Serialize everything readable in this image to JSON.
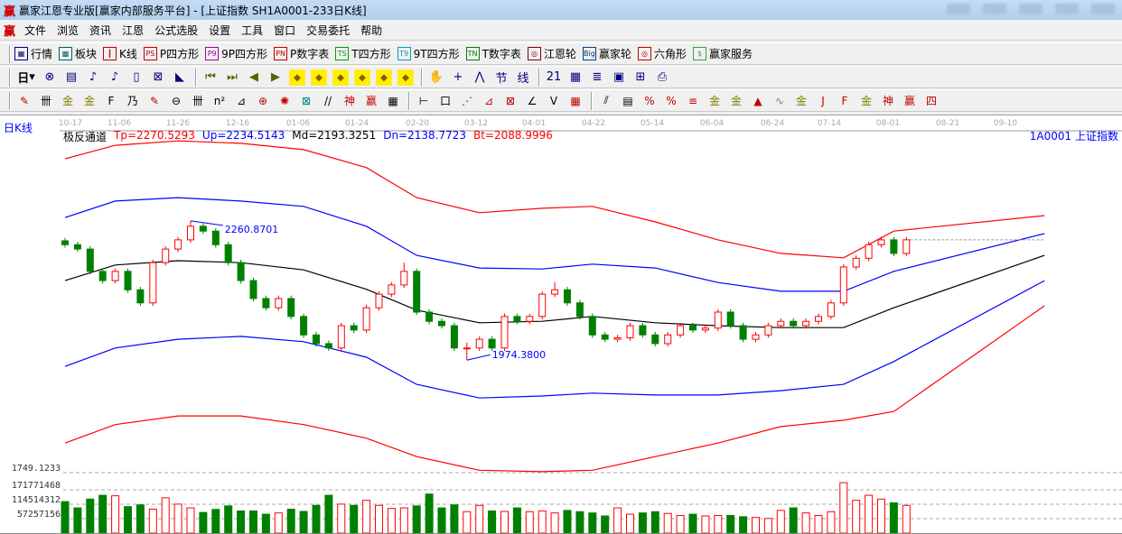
{
  "window": {
    "logo": "赢",
    "title": "赢家江恩专业版[赢家内部服务平台] - [上证指数  SH1A0001-233日K线]"
  },
  "menu": [
    "文件",
    "浏览",
    "资讯",
    "江恩",
    "公式选股",
    "设置",
    "工具",
    "窗口",
    "交易委托",
    "帮助"
  ],
  "toolbar1": [
    {
      "icon": "▦",
      "label": "行情",
      "color": "#000080"
    },
    {
      "icon": "▩",
      "label": "板块",
      "color": "#006060"
    },
    {
      "icon": "┃",
      "label": "K线",
      "color": "#c00000"
    },
    {
      "icon": "PS",
      "label": "P四方形",
      "color": "#c00000"
    },
    {
      "icon": "P9",
      "label": "9P四方形",
      "color": "#a000a0"
    },
    {
      "icon": "PN",
      "label": "P数字表",
      "color": "#c00000"
    },
    {
      "icon": "TS",
      "label": "T四方形",
      "color": "#00a000"
    },
    {
      "icon": "T9",
      "label": "9T四方形",
      "color": "#00a0c0"
    },
    {
      "icon": "TN",
      "label": "T数字表",
      "color": "#008000"
    },
    {
      "icon": "◎",
      "label": "江恩轮",
      "color": "#800000"
    },
    {
      "icon": "Big",
      "label": "赢家轮",
      "color": "#004080"
    },
    {
      "icon": "◎",
      "label": "六角形",
      "color": "#c00000"
    },
    {
      "icon": "$",
      "label": "赢家服务",
      "color": "#40a040"
    }
  ],
  "toolbar2": {
    "period": "日",
    "icons": [
      "stock-select-icon",
      "notes-icon",
      "wave3-icon",
      "wave9-icon",
      "candle-type-icon",
      "pattern-icon",
      "flag-icon",
      "first-icon",
      "last-icon",
      "prev-icon",
      "next-icon",
      "arrow-left-diamond-icon",
      "arrow-right-diamond-icon",
      "arrow-h-diamond-icon",
      "arrow-in-diamond-icon",
      "arrow-out-diamond-icon",
      "arrow-v-diamond-icon",
      "hand-icon",
      "crosshair-icon",
      "line-tool-icon",
      "node-icon",
      "green-line-icon",
      "calendar-icon",
      "calculator-icon",
      "notebook-icon",
      "save-icon",
      "network-icon",
      "print-icon"
    ],
    "glyphs": [
      "⊗",
      "▤",
      "♪",
      "♪",
      "▯",
      "⊠",
      "◣",
      "⏮",
      "⏭",
      "◀",
      "▶",
      "◆",
      "◆",
      "◆",
      "◆",
      "◆",
      "◆",
      "✋",
      "+",
      "⋀",
      "节",
      "线",
      "21",
      "▦",
      "≣",
      "▣",
      "⊞",
      "⎙"
    ]
  },
  "toolbar3": {
    "glyphs": [
      "✎",
      "卌",
      "金",
      "金",
      "F",
      "乃",
      "✎",
      "⊖",
      "卌",
      "n²",
      "⊿",
      "⊕",
      "✺",
      "⊠",
      "//",
      "神",
      "赢",
      "▦",
      "⊢",
      "口",
      "⋰",
      "⊿",
      "⊠",
      "∠",
      "V",
      "▦",
      "⫽",
      "▤",
      "%",
      "%",
      "≡",
      "金",
      "金",
      "▲",
      "∿",
      "金",
      "J",
      "F",
      "金",
      "神",
      "赢",
      "四"
    ],
    "colors": [
      "#c00000",
      "#000",
      "#808000",
      "#808000",
      "#000",
      "#000",
      "#c00000",
      "#000",
      "#000",
      "#000",
      "#000",
      "#c00000",
      "#c00000",
      "#008080",
      "#000",
      "#c00000",
      "#c00000",
      "#000",
      "#000",
      "#000",
      "#c00000",
      "#c00000",
      "#c00000",
      "#000",
      "#000",
      "#c00000",
      "#000",
      "#000",
      "#c00000",
      "#c00000",
      "#c00000",
      "#808000",
      "#808000",
      "#c00000",
      "#808080",
      "#808000",
      "#c00000",
      "#c00000",
      "#808000",
      "#c00000",
      "#c00000",
      "#c00000"
    ]
  },
  "chart": {
    "period_label": "日K线",
    "indicator_name": "极反通道",
    "indicators": [
      {
        "text": "Tp=2270.5293",
        "color": "#ff0000"
      },
      {
        "text": "Up=2234.5143",
        "color": "#0000ff"
      },
      {
        "text": "Md=2193.3251",
        "color": "#000000"
      },
      {
        "text": "Dn=2138.7723",
        "color": "#0000ff"
      },
      {
        "text": "Bt=2088.9996",
        "color": "#ff0000"
      }
    ],
    "symbol": "1A0001  上证指数",
    "dates": [
      "10-17",
      "11-06",
      "11-26",
      "12-16",
      "01-06",
      "01-24",
      "02-20",
      "03-12",
      "04-01",
      "04-22",
      "05-14",
      "06-04",
      "06-24",
      "07-14",
      "08-01",
      "08-21",
      "09-10"
    ],
    "high_label": "2260.8701",
    "low_label": "1974.3800",
    "volume_axis": [
      "1749.1233",
      "171771468",
      "114514312",
      "57257156"
    ],
    "colors": {
      "up": "#ff0000",
      "down": "#008000",
      "band_outer": "#ff0000",
      "band_inner": "#0000ff",
      "band_mid": "#000000"
    }
  },
  "chart_data": {
    "type": "candlestick",
    "candles": [
      [
        2220,
        2226,
        2206,
        2212
      ],
      [
        2212,
        2218,
        2197,
        2203
      ],
      [
        2203,
        2209,
        2151,
        2157
      ],
      [
        2157,
        2163,
        2132,
        2138
      ],
      [
        2138,
        2163,
        2132,
        2157
      ],
      [
        2157,
        2163,
        2113,
        2119
      ],
      [
        2119,
        2125,
        2086,
        2092
      ],
      [
        2092,
        2181,
        2086,
        2175
      ],
      [
        2175,
        2209,
        2169,
        2203
      ],
      [
        2203,
        2228,
        2197,
        2222
      ],
      [
        2222,
        2261,
        2216,
        2250
      ],
      [
        2250,
        2256,
        2234,
        2240
      ],
      [
        2240,
        2246,
        2206,
        2212
      ],
      [
        2212,
        2218,
        2169,
        2175
      ],
      [
        2175,
        2181,
        2132,
        2138
      ],
      [
        2138,
        2144,
        2095,
        2101
      ],
      [
        2101,
        2107,
        2076,
        2082
      ],
      [
        2082,
        2107,
        2076,
        2101
      ],
      [
        2101,
        2107,
        2058,
        2064
      ],
      [
        2064,
        2070,
        2020,
        2026
      ],
      [
        2026,
        2032,
        2002,
        2008
      ],
      [
        2008,
        2014,
        1993,
        1999
      ],
      [
        1999,
        2051,
        1993,
        2045
      ],
      [
        2045,
        2051,
        2030,
        2036
      ],
      [
        2036,
        2088,
        2030,
        2082
      ],
      [
        2082,
        2116,
        2076,
        2110
      ],
      [
        2110,
        2135,
        2104,
        2129
      ],
      [
        2129,
        2175,
        2123,
        2157
      ],
      [
        2157,
        2163,
        2067,
        2073
      ],
      [
        2073,
        2079,
        2048,
        2054
      ],
      [
        2054,
        2060,
        2039,
        2045
      ],
      [
        2045,
        2051,
        1993,
        1999
      ],
      [
        1999,
        2010,
        1974,
        1999
      ],
      [
        1999,
        2023,
        1993,
        2017
      ],
      [
        2017,
        2023,
        1993,
        1999
      ],
      [
        1999,
        2070,
        1993,
        2064
      ],
      [
        2064,
        2070,
        2048,
        2054
      ],
      [
        2054,
        2070,
        2048,
        2064
      ],
      [
        2064,
        2116,
        2058,
        2110
      ],
      [
        2110,
        2135,
        2104,
        2119
      ],
      [
        2119,
        2125,
        2086,
        2092
      ],
      [
        2092,
        2098,
        2058,
        2064
      ],
      [
        2064,
        2070,
        2020,
        2026
      ],
      [
        2026,
        2032,
        2011,
        2017
      ],
      [
        2017,
        2026,
        2011,
        2020
      ],
      [
        2020,
        2051,
        2014,
        2045
      ],
      [
        2045,
        2051,
        2020,
        2026
      ],
      [
        2026,
        2032,
        2002,
        2008
      ],
      [
        2008,
        2032,
        2002,
        2026
      ],
      [
        2026,
        2051,
        2020,
        2045
      ],
      [
        2045,
        2051,
        2030,
        2036
      ],
      [
        2036,
        2046,
        2030,
        2040
      ],
      [
        2040,
        2079,
        2034,
        2073
      ],
      [
        2073,
        2079,
        2039,
        2045
      ],
      [
        2045,
        2051,
        2011,
        2017
      ],
      [
        2017,
        2032,
        2011,
        2026
      ],
      [
        2026,
        2051,
        2020,
        2045
      ],
      [
        2045,
        2060,
        2039,
        2054
      ],
      [
        2054,
        2060,
        2039,
        2045
      ],
      [
        2045,
        2060,
        2039,
        2054
      ],
      [
        2054,
        2070,
        2048,
        2064
      ],
      [
        2064,
        2098,
        2058,
        2092
      ],
      [
        2092,
        2172,
        2086,
        2166
      ],
      [
        2166,
        2190,
        2160,
        2184
      ],
      [
        2184,
        2218,
        2178,
        2212
      ],
      [
        2212,
        2228,
        2206,
        2222
      ],
      [
        2222,
        2228,
        2188,
        2194
      ],
      [
        2194,
        2228,
        2188,
        2222
      ]
    ],
    "volume": [
      125000000,
      100000000,
      135000000,
      150000000,
      148000000,
      105000000,
      112000000,
      95000000,
      140000000,
      115000000,
      100000000,
      82000000,
      94000000,
      108000000,
      88000000,
      88000000,
      75000000,
      80000000,
      95000000,
      86000000,
      110000000,
      150000000,
      115000000,
      110000000,
      130000000,
      110000000,
      98000000,
      100000000,
      108000000,
      155000000,
      100000000,
      112000000,
      85000000,
      110000000,
      88000000,
      86000000,
      100000000,
      85000000,
      88000000,
      80000000,
      90000000,
      85000000,
      80000000,
      68000000,
      100000000,
      75000000,
      80000000,
      85000000,
      78000000,
      70000000,
      75000000,
      68000000,
      70000000,
      70000000,
      65000000,
      62000000,
      58000000,
      90000000,
      100000000,
      80000000,
      70000000,
      85000000,
      200000000,
      130000000,
      150000000,
      135000000,
      120000000,
      110000000
    ],
    "band_index": [
      0,
      4,
      9,
      14,
      19,
      24,
      28,
      33,
      38,
      42,
      47,
      52,
      57,
      62,
      66,
      78
    ],
    "bands": [
      {
        "name": "Tp",
        "values": [
          2389,
          2417,
          2426,
          2421,
          2408,
          2371,
          2309,
          2278,
          2287,
          2291,
          2259,
          2222,
          2194,
          2185,
          2240,
          2272
        ]
      },
      {
        "name": "Up",
        "values": [
          2268,
          2302,
          2309,
          2302,
          2291,
          2250,
          2190,
          2164,
          2162,
          2172,
          2164,
          2134,
          2116,
          2116,
          2157,
          2235
        ]
      },
      {
        "name": "Md",
        "values": [
          2138,
          2170,
          2179,
          2175,
          2160,
          2120,
          2077,
          2051,
          2054,
          2064,
          2051,
          2045,
          2041,
          2041,
          2082,
          2190
        ]
      },
      {
        "name": "Dn",
        "values": [
          1961,
          1999,
          2017,
          2023,
          2012,
          1980,
          1924,
          1896,
          1900,
          1906,
          1902,
          1902,
          1911,
          1924,
          1971,
          2138
        ]
      },
      {
        "name": "Bt",
        "values": [
          1803,
          1841,
          1859,
          1859,
          1841,
          1813,
          1775,
          1747,
          1744,
          1747,
          1775,
          1803,
          1837,
          1850,
          1868,
          2086
        ]
      }
    ]
  }
}
